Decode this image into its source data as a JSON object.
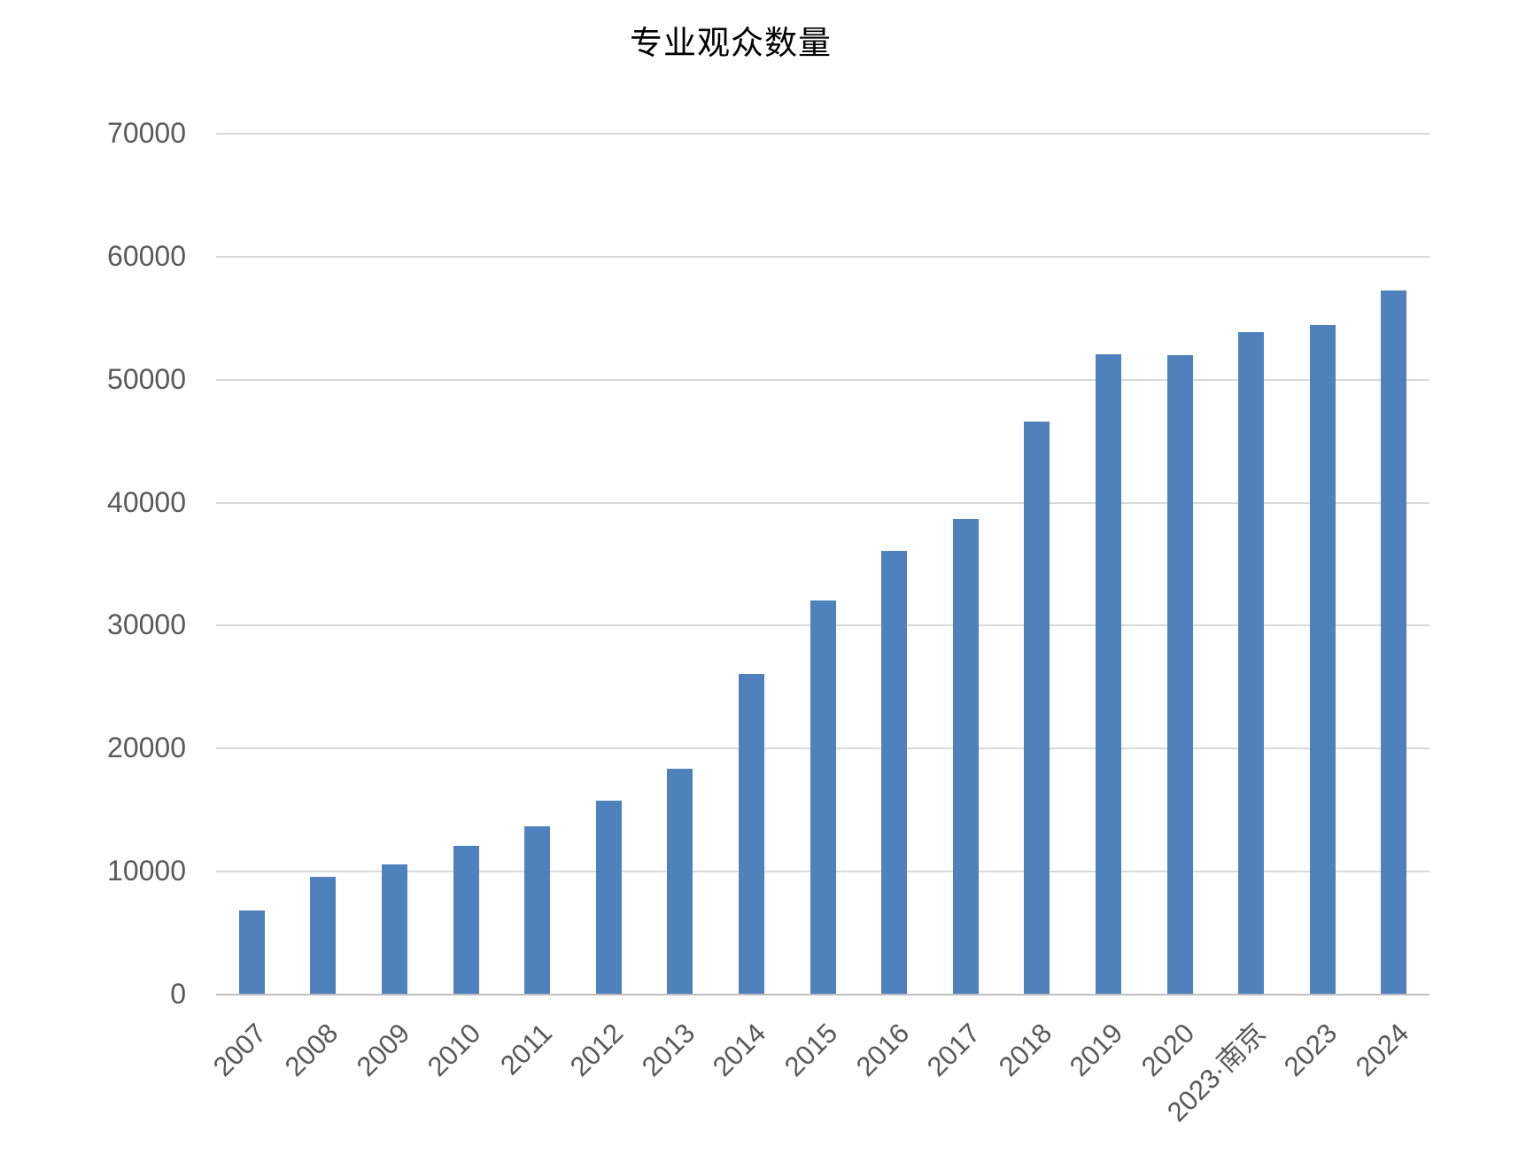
{
  "chart_data": {
    "type": "bar",
    "title": "专业观众数量",
    "categories": [
      "2007",
      "2008",
      "2009",
      "2010",
      "2011",
      "2012",
      "2013",
      "2014",
      "2015",
      "2016",
      "2017",
      "2018",
      "2019",
      "2020",
      "2023·南京",
      "2023",
      "2024"
    ],
    "values": [
      6800,
      9500,
      10500,
      12000,
      13600,
      15700,
      18300,
      26000,
      32000,
      36000,
      38600,
      46500,
      52000,
      51900,
      53800,
      54400,
      57200
    ],
    "xlabel": "",
    "ylabel": "",
    "ylim": [
      0,
      70000
    ],
    "yticks": [
      0,
      10000,
      20000,
      30000,
      40000,
      50000,
      60000,
      70000
    ],
    "grid": "horizontal",
    "legend": "none",
    "bar_color": "#4f81bd",
    "gridline_color": "#d9d9d9",
    "axis_line_color": "#bfbfbf",
    "tick_label_color": "#595959",
    "title_color": "#000000"
  }
}
